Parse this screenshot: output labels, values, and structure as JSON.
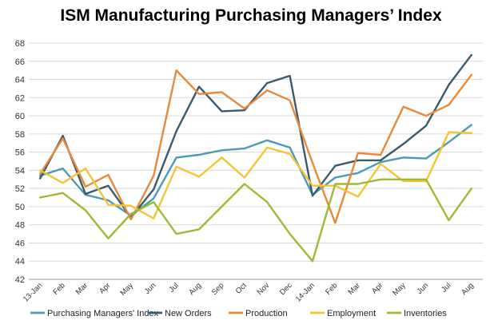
{
  "chart_data": {
    "type": "line",
    "title": "ISM Manufacturing Purchasing Managers’ Index",
    "xlabel": "",
    "ylabel": "",
    "ylim": [
      42,
      68
    ],
    "yticks": [
      42,
      44,
      46,
      48,
      50,
      52,
      54,
      56,
      58,
      60,
      62,
      64,
      66,
      68
    ],
    "grid": "horizontal",
    "legend_position": "bottom",
    "categories": [
      "13-Jan",
      "Feb",
      "Mar",
      "Apr",
      "May",
      "Jun",
      "Jul",
      "Aug",
      "Sep",
      "Oct",
      "Nov",
      "Dec",
      "14-Jan",
      "Feb",
      "Mar",
      "Apr",
      "May",
      "Jun",
      "Jul",
      "Aug"
    ],
    "series": [
      {
        "name": "Purchasing Managers' Index",
        "color": "#4a9bb5",
        "values": [
          53.4,
          54.2,
          51.3,
          50.7,
          49.0,
          50.9,
          55.4,
          55.7,
          56.2,
          56.4,
          57.3,
          56.5,
          51.3,
          53.2,
          53.7,
          54.9,
          55.4,
          55.3,
          57.1,
          59.0
        ]
      },
      {
        "name": "New Orders",
        "color": "#3a5a6e",
        "values": [
          53.1,
          57.8,
          51.4,
          52.3,
          48.8,
          51.9,
          58.3,
          63.2,
          60.5,
          60.6,
          63.6,
          64.4,
          51.2,
          54.5,
          55.1,
          55.1,
          56.9,
          58.9,
          63.4,
          66.7
        ]
      },
      {
        "name": "Production",
        "color": "#e8893a",
        "values": [
          53.6,
          57.5,
          52.2,
          53.5,
          48.6,
          53.4,
          65.0,
          62.4,
          62.6,
          60.8,
          62.8,
          61.7,
          54.8,
          48.2,
          55.9,
          55.7,
          61.0,
          60.0,
          61.2,
          64.5
        ]
      },
      {
        "name": "Employment",
        "color": "#f5c431",
        "values": [
          54.0,
          52.6,
          54.2,
          50.2,
          50.1,
          48.7,
          54.4,
          53.3,
          55.4,
          53.2,
          56.5,
          55.8,
          52.3,
          52.3,
          51.1,
          54.7,
          52.8,
          52.8,
          58.2,
          58.1
        ]
      },
      {
        "name": "Inventories",
        "color": "#9bbb36",
        "values": [
          51.0,
          51.5,
          49.6,
          46.5,
          49.2,
          50.5,
          47.0,
          47.5,
          50.0,
          52.5,
          50.5,
          47.0,
          44.0,
          52.5,
          52.5,
          53.0,
          53.0,
          53.0,
          48.5,
          52.0
        ]
      }
    ]
  }
}
